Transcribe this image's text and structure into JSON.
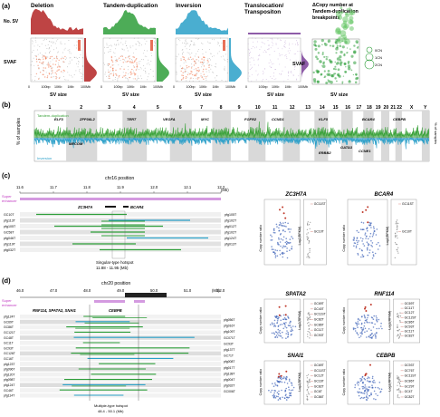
{
  "panel_a": {
    "letter": "(a)",
    "panels": [
      {
        "title": "Deletion",
        "color": "#b32323"
      },
      {
        "title": "Tandem-duplication",
        "color": "#2e9e3a"
      },
      {
        "title": "Inversion",
        "color": "#2aa0c8"
      },
      {
        "title": "Translocation/ Transpositon",
        "color": "#7a3f99"
      }
    ],
    "copy_title": "ΔCopy number at Tandem-duplication breakpoints",
    "ylabel_top": "No. SV",
    "ylabel_main": "SVAF",
    "xlabel": "SV size",
    "xticks": [
      "0",
      "100bp",
      "10Kb",
      "1Mb",
      "100Mb"
    ],
    "copy_legend": [
      "0CN",
      "1CN",
      "2CN"
    ]
  },
  "panel_b": {
    "letter": "(b)",
    "ylabel": "% of samples",
    "series": [
      {
        "name": "Tandem-duplication",
        "color": "#3aa23a"
      },
      {
        "name": "Inversion",
        "color": "#2a9fc9"
      }
    ],
    "chromosomes": [
      "1",
      "2",
      "3",
      "4",
      "5",
      "6",
      "7",
      "8",
      "9",
      "10",
      "11",
      "12",
      "13",
      "14",
      "15",
      "16",
      "17",
      "18",
      "19",
      "20",
      "21",
      "22",
      "X",
      "Y"
    ],
    "genes_top": [
      "ELF3",
      "ZFP36L2",
      "TERT",
      "VEGFA",
      "MYC",
      "FGFR2",
      "CCND1",
      "KLF5",
      "BCAR4",
      "CEBPB"
    ],
    "genes_bottom": [
      "MECOM",
      "GATA3",
      "ERBB2",
      "CCNE1"
    ]
  },
  "panel_c": {
    "letter": "(c)",
    "title": "chr16 position",
    "ticks": [
      "11.6",
      "11.7",
      "11.8",
      "11.9",
      "12.0",
      "12.1",
      "12.2"
    ],
    "unit": "(Mb)",
    "super_label": "Super enhancer",
    "genes": [
      "ZC3H7A",
      "BCAR4"
    ],
    "left_samples": [
      "GC10T",
      "pfg113T",
      "pfg105T",
      "GC58T",
      "pfg046T",
      "pfg119T",
      "pfg032T"
    ],
    "right_samples": [
      "pfg105T",
      "pfg102T",
      "pfg012T",
      "pfg102T",
      "pfg124T",
      "pfg013T"
    ],
    "hotspot": "Singular-type hotspot",
    "hotspot_range": "11.88 - 11.95 (Mb)",
    "scatter1": {
      "title": "ZC3H7A",
      "ylabel": "Copy number ratio",
      "ylabel2": "Log2(RPKM)",
      "labels": [
        "GC11ST",
        "GC10T"
      ]
    },
    "scatter2": {
      "title": "BCAR4",
      "ylabel": "Copy number ratio",
      "ylabel2": "Log2(RPKM)",
      "labels": [
        "GC11ST",
        "GC10T"
      ]
    }
  },
  "panel_d": {
    "letter": "(d)",
    "title": "chr20 position",
    "ticks": [
      "46.0",
      "47.0",
      "48.0",
      "49.0",
      "50.0",
      "51.0",
      "52.0"
    ],
    "unit": "(Mb)",
    "super_label": "Super enhancer",
    "genes": [
      "RNF114",
      "SPATA2",
      "SNAI1",
      "CEBPB"
    ],
    "left_samples": [
      "pfg124T",
      "GC69T",
      "GC86T",
      "GC121T",
      "GC48T",
      "GC11T",
      "GC93T",
      "GC126T",
      "GC16T",
      "pfg123T",
      "pfg096T",
      "pfg120T",
      "pfg098T",
      "pfg124T",
      "GC46T",
      "pfg114T"
    ],
    "right_samples": [
      "pfg056T",
      "pfg016T",
      "pfg109T",
      "GC071T",
      "GC93T",
      "pfg137T",
      "GC71T",
      "pfg008T",
      "pfg017T",
      "pfg138T",
      "pfg004T",
      "pfg032T",
      "GC006T"
    ],
    "hotspot": "Multiple-type hotspot",
    "hotspot_range": "48.4 - 50.1 (Mb)",
    "scatter_spata2": {
      "title": "SPATA2",
      "labels": [
        "GC69T",
        "GC40T",
        "GC11ST",
        "GC82T",
        "GC86T",
        "GC11T",
        "GC93T"
      ]
    },
    "scatter_rnf114": {
      "title": "RNF114",
      "labels": [
        "GC69T",
        "GC11T",
        "GC12T",
        "GC12ST",
        "GC86T",
        "GC93T",
        "GC11T",
        "GC82T"
      ]
    },
    "scatter_snai1": {
      "title": "SNAI1",
      "labels": [
        "GC69T",
        "GC11ST",
        "GC12T",
        "GC16T",
        "GC82T",
        "GC6T",
        "GC86T"
      ]
    },
    "scatter_cebpb": {
      "title": "CEBPB",
      "labels": [
        "GC93T",
        "GC76T",
        "GC11ST",
        "GC86T",
        "GC29T",
        "GC4T",
        "GC82T"
      ]
    }
  }
}
